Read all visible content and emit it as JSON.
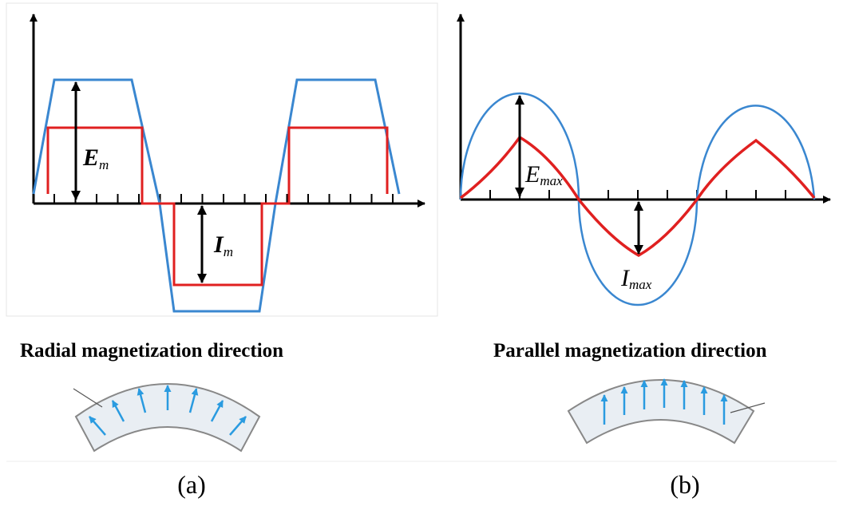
{
  "panels": [
    {
      "label": "(a)",
      "caption": "Radial magnetization direction",
      "amplitude_labels": [
        {
          "symbol": "E",
          "subscript": "m"
        },
        {
          "symbol": "I",
          "subscript": "m"
        }
      ]
    },
    {
      "label": "(b)",
      "caption": "Parallel magnetization direction",
      "amplitude_labels": [
        {
          "symbol": "E",
          "subscript": "max"
        },
        {
          "symbol": "I",
          "subscript": "max"
        }
      ]
    }
  ]
}
